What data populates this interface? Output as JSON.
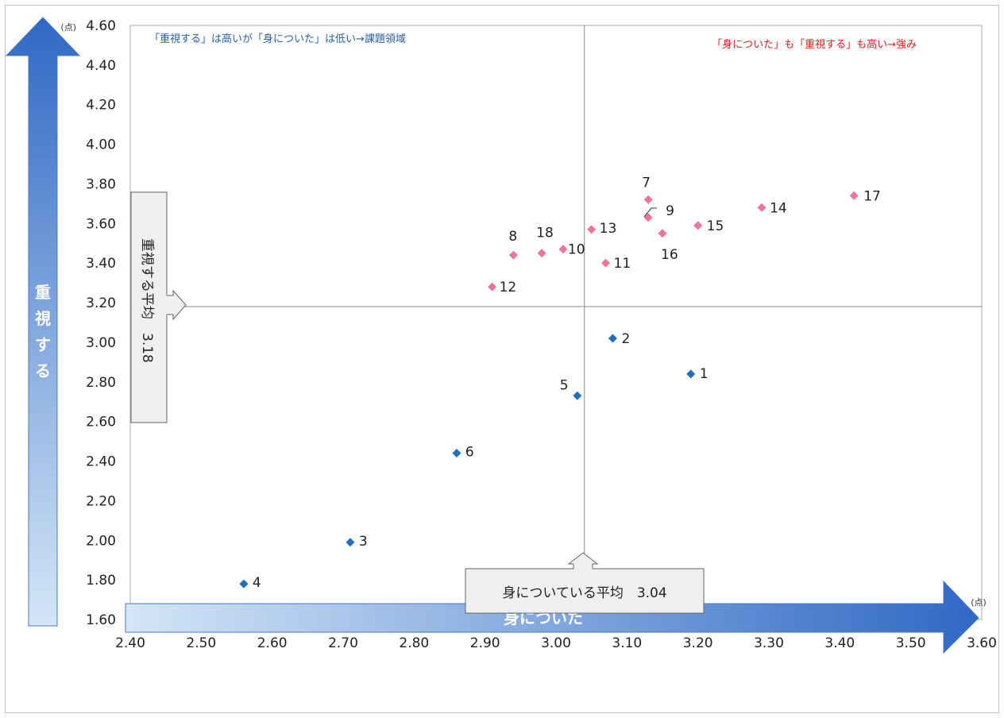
{
  "chart_data": {
    "type": "scatter",
    "xlabel": "身についた",
    "ylabel": "重視する",
    "x_unit": "(点)",
    "y_unit": "(点)",
    "xlim": [
      2.4,
      3.6
    ],
    "ylim": [
      1.6,
      4.6
    ],
    "x_ticks": [
      "2.40",
      "2.50",
      "2.60",
      "2.70",
      "2.80",
      "2.90",
      "3.00",
      "3.10",
      "3.20",
      "3.30",
      "3.40",
      "3.50",
      "3.60"
    ],
    "y_ticks": [
      "1.60",
      "1.80",
      "2.00",
      "2.20",
      "2.40",
      "2.60",
      "2.80",
      "3.00",
      "3.20",
      "3.40",
      "3.60",
      "3.80",
      "4.00",
      "4.20",
      "4.40",
      "4.60"
    ],
    "grid": false,
    "avg_x": 3.04,
    "avg_y": 3.18,
    "avg_x_label": "身についている平均　3.04",
    "avg_y_label": "重視する平均　3.18",
    "quadrant_labels": {
      "top_left": "「重視する」は高いが「身についた」は低い→課題領域",
      "top_right": "「身についた」も「重視する」も高い→強み"
    },
    "series": [
      {
        "color": "#1f6fc0",
        "points": [
          {
            "label": "1",
            "x": 3.19,
            "y": 2.84
          },
          {
            "label": "2",
            "x": 3.08,
            "y": 3.02
          },
          {
            "label": "3",
            "x": 2.71,
            "y": 1.99
          },
          {
            "label": "4",
            "x": 2.56,
            "y": 1.78
          },
          {
            "label": "5",
            "x": 3.03,
            "y": 2.73
          },
          {
            "label": "6",
            "x": 2.86,
            "y": 2.44
          }
        ]
      },
      {
        "color": "#f0739a",
        "points": [
          {
            "label": "7",
            "x": 3.13,
            "y": 3.72
          },
          {
            "label": "8",
            "x": 2.94,
            "y": 3.44
          },
          {
            "label": "9",
            "x": 3.13,
            "y": 3.63
          },
          {
            "label": "10",
            "x": 3.01,
            "y": 3.47
          },
          {
            "label": "11",
            "x": 3.07,
            "y": 3.4
          },
          {
            "label": "12",
            "x": 2.91,
            "y": 3.28
          },
          {
            "label": "13",
            "x": 3.05,
            "y": 3.57
          },
          {
            "label": "14",
            "x": 3.29,
            "y": 3.68
          },
          {
            "label": "15",
            "x": 3.2,
            "y": 3.59
          },
          {
            "label": "16",
            "x": 3.15,
            "y": 3.55
          },
          {
            "label": "17",
            "x": 3.42,
            "y": 3.74
          },
          {
            "label": "18",
            "x": 2.98,
            "y": 3.45
          }
        ]
      }
    ]
  }
}
